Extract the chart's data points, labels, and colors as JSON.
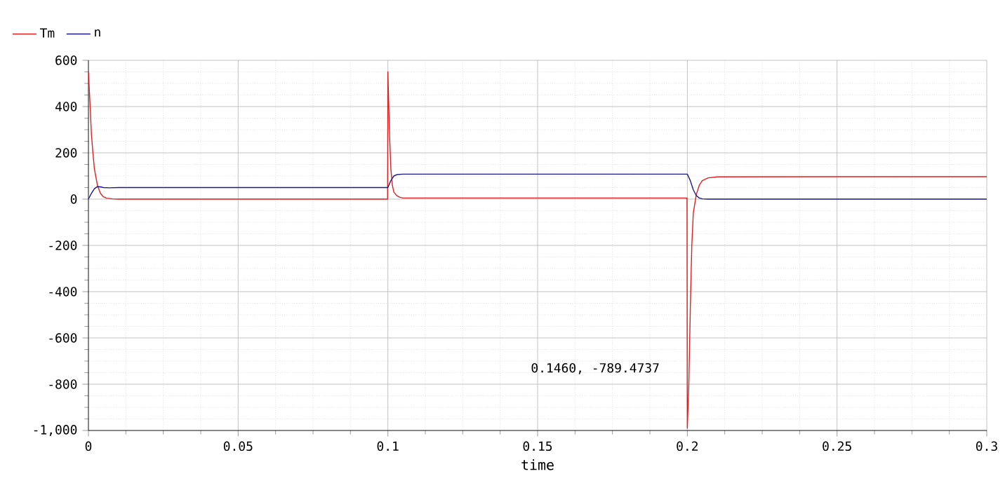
{
  "chart_data": {
    "type": "line",
    "xlabel": "time",
    "xlim": [
      0,
      0.3
    ],
    "ylim": [
      -1000,
      600
    ],
    "xticks": [
      0,
      0.05,
      0.1,
      0.15,
      0.2,
      0.25,
      0.3
    ],
    "yticks": [
      {
        "value": -1000,
        "label": "-1,000"
      },
      -800,
      -600,
      -400,
      -200,
      0,
      200,
      400,
      600
    ],
    "grid": true,
    "legend": "top left",
    "annotations": [
      "0.1460, -789.4737"
    ],
    "series": [
      {
        "name": "Tm",
        "color": "#e02020",
        "x": [
          0,
          0.0005,
          0.001,
          0.0015,
          0.002,
          0.003,
          0.004,
          0.005,
          0.006,
          0.008,
          0.01,
          0.05,
          0.0999,
          0.1,
          0.1005,
          0.101,
          0.1015,
          0.102,
          0.103,
          0.104,
          0.105,
          0.107,
          0.11,
          0.15,
          0.1999,
          0.2,
          0.2005,
          0.201,
          0.2015,
          0.202,
          0.203,
          0.204,
          0.205,
          0.207,
          0.21,
          0.25,
          0.3
        ],
        "values": [
          550,
          420,
          280,
          200,
          130,
          60,
          25,
          10,
          4,
          1,
          0,
          0,
          0,
          550,
          300,
          130,
          60,
          30,
          15,
          8,
          5,
          5,
          5,
          5,
          5,
          -990,
          -800,
          -470,
          -200,
          -60,
          20,
          60,
          80,
          92,
          96,
          97,
          97
        ]
      },
      {
        "name": "n",
        "color": "#1a1a8c",
        "x": [
          0,
          0.001,
          0.002,
          0.003,
          0.004,
          0.005,
          0.007,
          0.01,
          0.05,
          0.1,
          0.101,
          0.102,
          0.103,
          0.105,
          0.11,
          0.15,
          0.2,
          0.201,
          0.202,
          0.203,
          0.204,
          0.205,
          0.207,
          0.25,
          0.3
        ],
        "values": [
          0,
          25,
          45,
          54,
          53,
          50,
          49,
          50,
          50,
          50,
          80,
          100,
          106,
          108,
          108,
          108,
          108,
          80,
          40,
          15,
          5,
          1,
          0,
          0,
          0
        ]
      }
    ]
  }
}
